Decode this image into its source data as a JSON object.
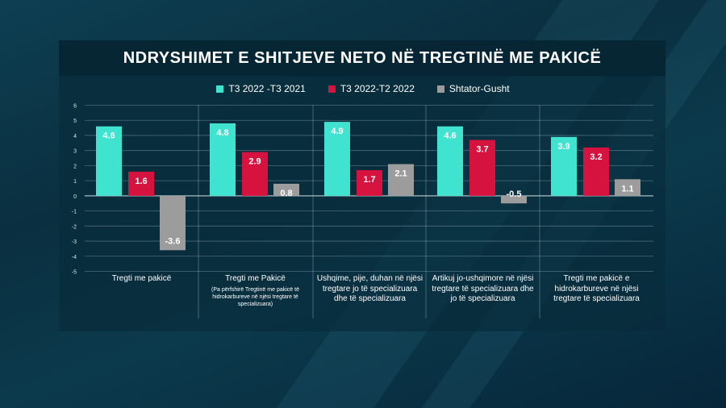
{
  "chart_data": {
    "type": "bar",
    "title": "NDRYSHIMET E SHITJEVE NETO NË TREGTINË ME PAKICË",
    "ylim": [
      -5,
      6
    ],
    "yticks": [
      "6",
      "5",
      "4",
      "3",
      "2",
      "1",
      "0",
      "-1",
      "-2",
      "-3",
      "-4",
      "-5"
    ],
    "legend_position": "top",
    "categories": [
      {
        "label": "Tregti me pakicë",
        "sub": ""
      },
      {
        "label": "Tregti me Pakicë",
        "sub": "(Pa përfshirë Tregtinë me pakicë të hidrokarbureve në njësi tregtare të specializuara)"
      },
      {
        "label": "Ushqime, pije, duhan në njësi tregtare jo të specializuara dhe të specializuara",
        "sub": ""
      },
      {
        "label": "Artikuj jo-ushqimore në njësi tregtare të specializuara dhe jo të specializuara",
        "sub": ""
      },
      {
        "label": "Tregti me pakicë e hidrokarbureve në njësi tregtare të specializuara",
        "sub": ""
      }
    ],
    "series": [
      {
        "name": "T3 2022 -T3 2021",
        "color": "#3fe3d0",
        "values": [
          4.6,
          4.8,
          4.9,
          4.6,
          3.9
        ]
      },
      {
        "name": "T3 2022-T2 2022",
        "color": "#d6123f",
        "values": [
          1.6,
          2.9,
          1.7,
          3.7,
          3.2
        ]
      },
      {
        "name": "Shtator-Gusht",
        "color": "#9c9c9c",
        "values": [
          -3.6,
          0.8,
          2.1,
          -0.5,
          1.1
        ]
      }
    ]
  }
}
